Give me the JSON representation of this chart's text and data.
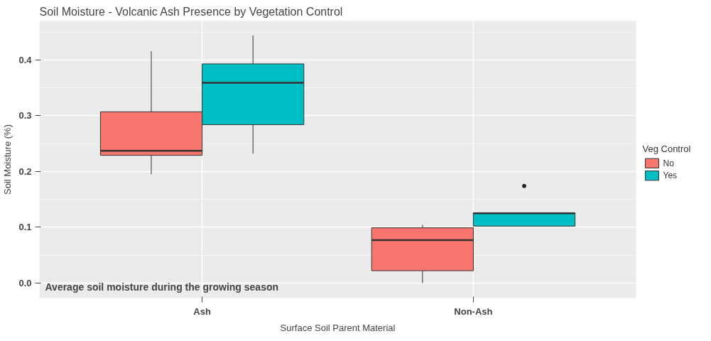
{
  "chart_data": {
    "type": "box",
    "title": "Soil Moisture - Volcanic Ash Presence by Vegetation Control",
    "xlabel": "Surface Soil Parent Material",
    "ylabel": "Soil Moisture (%)",
    "legend_title": "Veg Control",
    "categories": [
      "Ash",
      "Non-Ash"
    ],
    "series": [
      {
        "name": "No",
        "color": "#f8766d",
        "boxes": [
          {
            "low": 0.195,
            "q1": 0.229,
            "median": 0.237,
            "q3": 0.307,
            "high": 0.416
          },
          {
            "low": 0.0,
            "q1": 0.022,
            "median": 0.077,
            "q3": 0.099,
            "high": 0.104
          }
        ]
      },
      {
        "name": "Yes",
        "color": "#00bfc4",
        "boxes": [
          {
            "low": 0.232,
            "q1": 0.284,
            "median": 0.359,
            "q3": 0.393,
            "high": 0.444
          },
          {
            "low": 0.102,
            "q1": 0.102,
            "median": 0.125,
            "q3": 0.126,
            "high": 0.126,
            "outliers": [
              0.174
            ]
          }
        ]
      }
    ],
    "ylim": [
      -0.027,
      0.47
    ],
    "yticks": [
      {
        "value": 0,
        "label": "0.0"
      },
      {
        "value": 0.1,
        "label": "0.1"
      },
      {
        "value": 0.2,
        "label": "0.2"
      },
      {
        "value": 0.3,
        "label": "0.3"
      },
      {
        "value": 0.4,
        "label": "0.4"
      }
    ],
    "grid": true,
    "legend": "right",
    "annotations": [
      "Average soil moisture during the growing season"
    ]
  }
}
